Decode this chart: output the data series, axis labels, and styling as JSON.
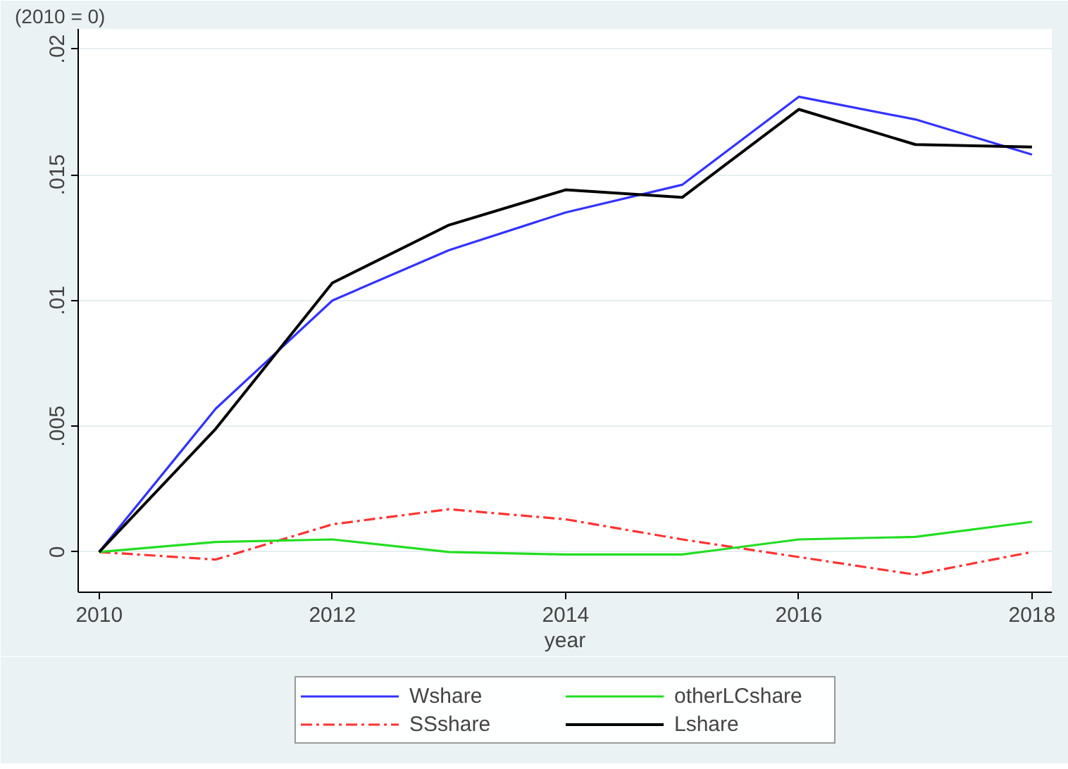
{
  "chart_data": {
    "type": "line",
    "title": "(2010 = 0)",
    "xlabel": "year",
    "x": [
      2010,
      2011,
      2012,
      2013,
      2014,
      2015,
      2016,
      2017,
      2018
    ],
    "series": [
      {
        "name": "Wshare",
        "color": "#3333ff",
        "line_style": "solid",
        "values": [
          0,
          0.0057,
          0.01,
          0.012,
          0.0135,
          0.0146,
          0.0181,
          0.0172,
          0.0158
        ]
      },
      {
        "name": "SSshare",
        "color": "#ff3333",
        "line_style": "dashdot",
        "values": [
          0,
          -0.0003,
          0.0011,
          0.0017,
          0.0013,
          0.0005,
          -0.0002,
          -0.0009,
          0
        ]
      },
      {
        "name": "otherLCshare",
        "color": "#22dd22",
        "line_style": "solid",
        "values": [
          0,
          0.0004,
          0.0005,
          0,
          -0.0001,
          -0.0001,
          0.0005,
          0.0006,
          0.0012
        ]
      },
      {
        "name": "Lshare",
        "color": "#000000",
        "line_style": "solid",
        "values": [
          0,
          0.0049,
          0.0107,
          0.013,
          0.0144,
          0.0141,
          0.0176,
          0.0162,
          0.0161
        ]
      }
    ],
    "xlim": [
      2009.82,
      2018.17
    ],
    "ylim": [
      -0.0016,
      0.0208
    ],
    "xticks": [
      2010,
      2012,
      2014,
      2016,
      2018
    ],
    "yticks": [
      {
        "value": 0,
        "label": "0"
      },
      {
        "value": 0.005,
        "label": ".005"
      },
      {
        "value": 0.01,
        "label": ".01"
      },
      {
        "value": 0.015,
        "label": ".015"
      },
      {
        "value": 0.02,
        "label": ".02"
      }
    ],
    "grid": "y",
    "legend": "bottom",
    "marker": "none"
  }
}
